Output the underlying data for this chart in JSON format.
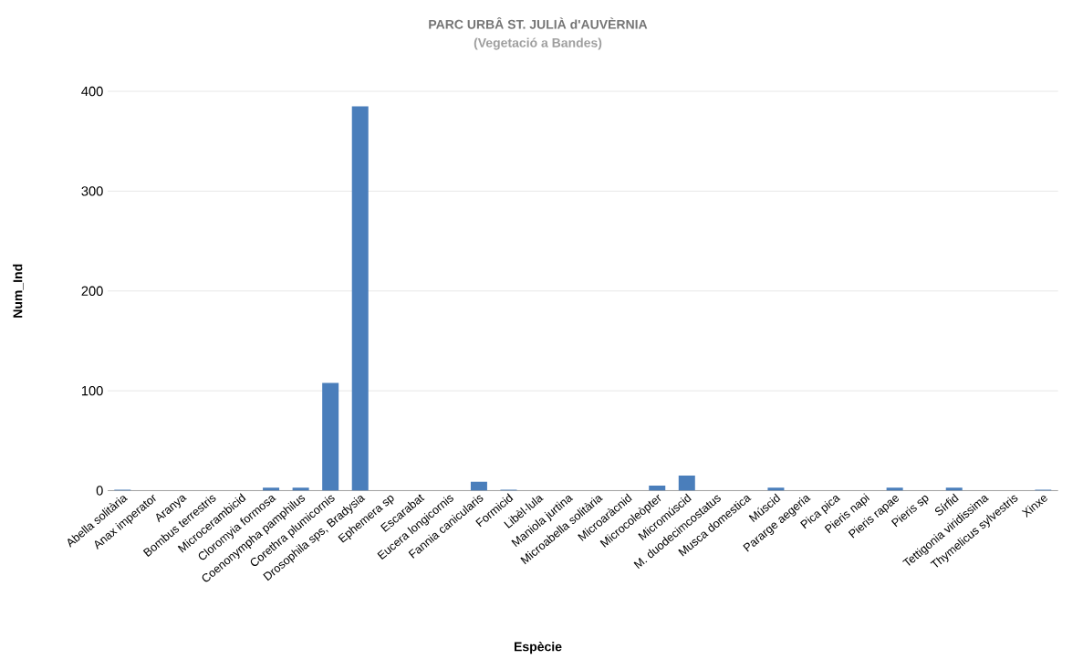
{
  "chart_data": {
    "type": "bar",
    "title": "PARC URBÂ ST. JULIÀ d'AUVÈRNIA",
    "subtitle": "(Vegetació a Bandes)",
    "xlabel": "Espècie",
    "ylabel": "Num_Ind",
    "categories": [
      "Abella solitària",
      "Anax imperator",
      "Aranya",
      "Bombus terrestris",
      "Microcerambicid",
      "Cloromyia formosa",
      "Coenonympha pamphilus",
      "Corethra plumicornis",
      "Drosophila sps, Bradysia",
      "Ephemera sp",
      "Escarabat",
      "Eucera longicornis",
      "Fannia canicularis",
      "Formicid",
      "Libèl·lula",
      "Maniola jurtina",
      "Microabella solitària",
      "Microaràcnid",
      "Microcoleòpter",
      "Micromúscid",
      "M. duodecimcostatus",
      "Musca domestica",
      "Múscid",
      "Pararge aegeria",
      "Pica pica",
      "Pieris napi",
      "Pieris rapae",
      "Pieris sp",
      "Sírfid",
      "Tettigonia viridissima",
      "Thymelicus sylvestris",
      "Xinxe"
    ],
    "values": [
      1,
      0,
      0,
      0,
      0,
      3,
      3,
      108,
      385,
      0,
      0,
      0,
      9,
      1,
      0,
      0,
      0,
      0,
      5,
      15,
      0,
      0,
      3,
      0,
      0,
      0,
      3,
      0,
      3,
      0,
      0,
      1
    ],
    "color": "#4a7ebb",
    "ylim": [
      0,
      400
    ],
    "yticks": [
      0,
      100,
      200,
      300,
      400
    ],
    "grid": "y"
  }
}
